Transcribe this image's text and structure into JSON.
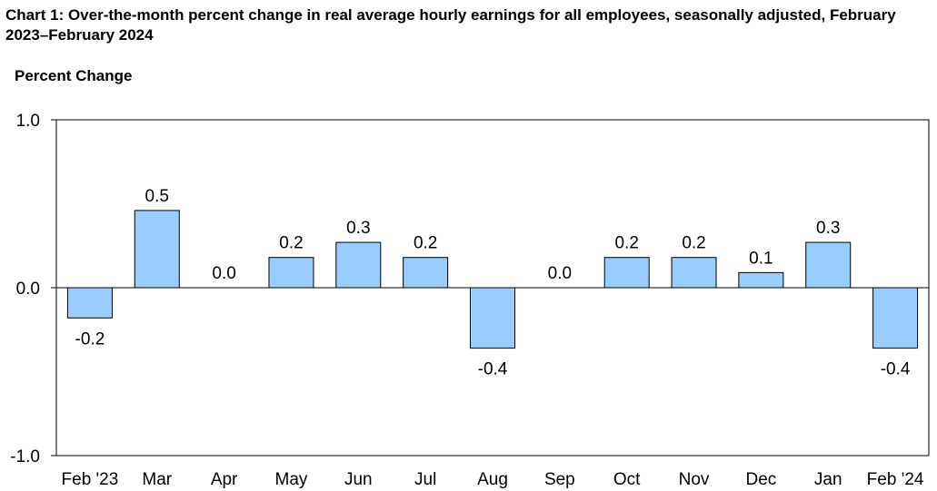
{
  "chart_data": {
    "type": "bar",
    "title": "Chart 1: Over-the-month percent change in real average hourly earnings for all employees, seasonally adjusted, February 2023–February 2024",
    "ylabel": "Percent Change",
    "xlabel": "",
    "categories": [
      "Feb '23",
      "Mar",
      "Apr",
      "May",
      "Jun",
      "Jul",
      "Aug",
      "Sep",
      "Oct",
      "Nov",
      "Dec",
      "Jan",
      "Feb '24"
    ],
    "values": [
      -0.18,
      0.46,
      0.0,
      0.18,
      0.27,
      0.18,
      -0.36,
      0.0,
      0.18,
      0.18,
      0.09,
      0.27,
      -0.36
    ],
    "data_labels": [
      "-0.2",
      "0.5",
      "0.0",
      "0.2",
      "0.3",
      "0.2",
      "-0.4",
      "0.0",
      "0.2",
      "0.2",
      "0.1",
      "0.3",
      "-0.4"
    ],
    "ylim": [
      -1.0,
      1.0
    ],
    "yticks": [
      -1.0,
      0.0,
      1.0
    ],
    "ytick_labels": [
      "-1.0",
      "0.0",
      "1.0"
    ],
    "grid": false,
    "legend": "none",
    "colors": {
      "bar_fill": "#99ccff",
      "bar_stroke": "#000000",
      "axis": "#000000"
    }
  }
}
